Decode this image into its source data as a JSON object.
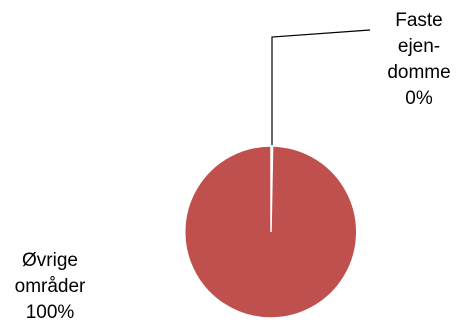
{
  "chart_data": {
    "type": "pie",
    "title": "",
    "slices": [
      {
        "label": "Faste ejendomme",
        "value": 0.3,
        "percent_label": "0%",
        "color": "#4f81bd"
      },
      {
        "label": "Øvrige områder",
        "value": 99.7,
        "percent_label": "100%",
        "color": "#c0504d"
      }
    ],
    "data_labels": [
      {
        "lines": [
          "Faste",
          "ejen-",
          "domme",
          "0%"
        ]
      },
      {
        "lines": [
          "Øvrige",
          "områder",
          "100%"
        ]
      }
    ]
  }
}
